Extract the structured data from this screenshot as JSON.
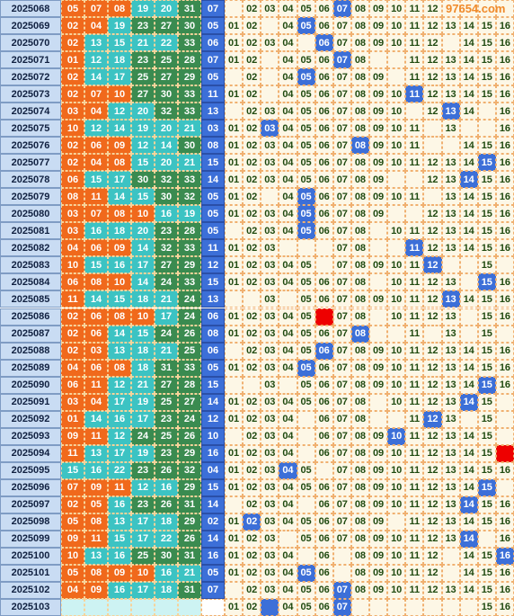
{
  "watermark": "97654.com",
  "zone_colors": [
    "#f0691c",
    "#3cc3c3",
    "#3a8b50"
  ],
  "blue_color": "#3c6fd8",
  "rows": [
    {
      "issue": "2025068",
      "red": [
        "05",
        "07",
        "08",
        "19",
        "20",
        "31"
      ],
      "blue": "07",
      "dist": [
        null,
        "02",
        "03",
        "04",
        "05",
        "06",
        {
          "text": "07",
          "fill": "#3c6fd8"
        },
        "08",
        "09",
        "10",
        "11",
        "12",
        null,
        null,
        null,
        null
      ]
    },
    {
      "issue": "2025069",
      "red": [
        "02",
        "04",
        "19",
        "23",
        "27",
        "30"
      ],
      "blue": "05",
      "dist": [
        "01",
        "02",
        null,
        "04",
        {
          "text": "05",
          "fill": "#3c6fd8"
        },
        "06",
        "07",
        "08",
        "09",
        "10",
        "11",
        "12",
        "13",
        "14",
        "15",
        "16"
      ]
    },
    {
      "issue": "2025070",
      "red": [
        "02",
        "13",
        "15",
        "21",
        "22",
        "33"
      ],
      "blue": "06",
      "dist": [
        "01",
        "02",
        "03",
        "04",
        null,
        {
          "text": "06",
          "fill": "#3c6fd8"
        },
        "07",
        "08",
        "09",
        "10",
        "11",
        "12",
        null,
        "14",
        "15",
        "16"
      ]
    },
    {
      "issue": "2025071",
      "red": [
        "01",
        "12",
        "18",
        "23",
        "25",
        "28"
      ],
      "blue": "07",
      "dist": [
        "01",
        "02",
        null,
        "04",
        "05",
        "06",
        {
          "text": "07",
          "fill": "#3c6fd8"
        },
        "08",
        null,
        null,
        "11",
        "12",
        "13",
        "14",
        "15",
        "16"
      ]
    },
    {
      "issue": "2025072",
      "red": [
        "02",
        "14",
        "17",
        "25",
        "27",
        "29"
      ],
      "blue": "05",
      "dist": [
        null,
        "02",
        null,
        "04",
        {
          "text": "05",
          "fill": "#3c6fd8"
        },
        "06",
        "07",
        "08",
        "09",
        null,
        "11",
        "12",
        "13",
        "14",
        "15",
        "16"
      ]
    },
    {
      "issue": "2025073",
      "red": [
        "02",
        "07",
        "10",
        "27",
        "30",
        "33"
      ],
      "blue": "11",
      "dist": [
        "01",
        "02",
        null,
        "04",
        "05",
        "06",
        "07",
        "08",
        "09",
        "10",
        {
          "text": "11",
          "fill": "#3c6fd8"
        },
        "12",
        "13",
        "14",
        "15",
        "16"
      ]
    },
    {
      "issue": "2025074",
      "red": [
        "03",
        "04",
        "12",
        "20",
        "32",
        "33"
      ],
      "blue": "13",
      "dist": [
        null,
        "02",
        "03",
        "04",
        "05",
        "06",
        "07",
        "08",
        "09",
        "10",
        null,
        "12",
        {
          "text": "13",
          "fill": "#3c6fd8"
        },
        "14",
        null,
        "16"
      ]
    },
    {
      "issue": "2025075",
      "red": [
        "10",
        "12",
        "14",
        "19",
        "20",
        "21"
      ],
      "blue": "03",
      "dist": [
        "01",
        "02",
        {
          "text": "03",
          "fill": "#3c6fd8"
        },
        "04",
        "05",
        "06",
        "07",
        "08",
        "09",
        "10",
        "11",
        null,
        "13",
        null,
        null,
        "16"
      ]
    },
    {
      "issue": "2025076",
      "red": [
        "02",
        "06",
        "09",
        "12",
        "14",
        "30"
      ],
      "blue": "08",
      "dist": [
        "01",
        "02",
        "03",
        "04",
        "05",
        "06",
        "07",
        {
          "text": "08",
          "fill": "#3c6fd8"
        },
        "09",
        "10",
        "11",
        null,
        null,
        "14",
        "15",
        "16"
      ]
    },
    {
      "issue": "2025077",
      "red": [
        "02",
        "04",
        "08",
        "15",
        "20",
        "21"
      ],
      "blue": "15",
      "dist": [
        "01",
        "02",
        "03",
        "04",
        "05",
        "06",
        "07",
        "08",
        "09",
        "10",
        "11",
        "12",
        "13",
        "14",
        {
          "text": "15",
          "fill": "#3c6fd8"
        },
        "16"
      ]
    },
    {
      "issue": "2025078",
      "red": [
        "06",
        "15",
        "17",
        "30",
        "32",
        "33"
      ],
      "blue": "14",
      "dist": [
        "01",
        "02",
        "03",
        "04",
        "05",
        "06",
        "07",
        "08",
        "09",
        null,
        null,
        "12",
        "13",
        {
          "text": "14",
          "fill": "#3c6fd8"
        },
        "15",
        "16"
      ]
    },
    {
      "issue": "2025079",
      "red": [
        "08",
        "11",
        "14",
        "15",
        "30",
        "32"
      ],
      "blue": "05",
      "dist": [
        "01",
        "02",
        null,
        "04",
        {
          "text": "05",
          "fill": "#3c6fd8"
        },
        "06",
        "07",
        "08",
        "09",
        "10",
        "11",
        null,
        "13",
        "14",
        "15",
        "16"
      ]
    },
    {
      "issue": "2025080",
      "red": [
        "03",
        "07",
        "08",
        "10",
        "16",
        "19"
      ],
      "blue": "05",
      "dist": [
        "01",
        "02",
        "03",
        "04",
        {
          "text": "05",
          "fill": "#3c6fd8"
        },
        "06",
        "07",
        "08",
        "09",
        null,
        null,
        "12",
        "13",
        "14",
        "15",
        "16"
      ]
    },
    {
      "issue": "2025081",
      "red": [
        "03",
        "16",
        "18",
        "20",
        "23",
        "28"
      ],
      "blue": "05",
      "dist": [
        null,
        "02",
        "03",
        "04",
        {
          "text": "05",
          "fill": "#3c6fd8"
        },
        "06",
        "07",
        "08",
        null,
        "10",
        "11",
        "12",
        "13",
        "14",
        "15",
        "16"
      ]
    },
    {
      "issue": "2025082",
      "red": [
        "04",
        "06",
        "09",
        "14",
        "32",
        "33"
      ],
      "blue": "11",
      "dist": [
        "01",
        "02",
        "03",
        null,
        null,
        null,
        "07",
        "08",
        null,
        null,
        {
          "text": "11",
          "fill": "#3c6fd8"
        },
        "12",
        "13",
        "14",
        "15",
        "16"
      ]
    },
    {
      "issue": "2025083",
      "red": [
        "10",
        "15",
        "16",
        "17",
        "27",
        "29"
      ],
      "blue": "12",
      "dist": [
        "01",
        "02",
        "03",
        "04",
        "05",
        null,
        "07",
        "08",
        "09",
        "10",
        "11",
        {
          "text": "12",
          "fill": "#3c6fd8"
        },
        null,
        null,
        "15",
        null
      ]
    },
    {
      "issue": "2025084",
      "red": [
        "06",
        "08",
        "10",
        "14",
        "24",
        "33"
      ],
      "blue": "15",
      "dist": [
        "01",
        "02",
        "03",
        "04",
        "05",
        "06",
        "07",
        "08",
        null,
        "10",
        "11",
        "12",
        "13",
        null,
        {
          "text": "15",
          "fill": "#3c6fd8"
        },
        "16"
      ]
    },
    {
      "issue": "2025085",
      "red": [
        "11",
        "14",
        "15",
        "18",
        "21",
        "24"
      ],
      "blue": "13",
      "dist": [
        null,
        null,
        "03",
        null,
        "05",
        "06",
        "07",
        "08",
        "09",
        "10",
        "11",
        "12",
        {
          "text": "13",
          "fill": "#3c6fd8"
        },
        "14",
        "15",
        "16"
      ]
    },
    {
      "issue": "2025086",
      "red": [
        "02",
        "06",
        "08",
        "10",
        "17",
        "24"
      ],
      "blue": "06",
      "dist": [
        "01",
        "02",
        "03",
        "04",
        "05",
        {
          "fill": "#ee0000"
        },
        "07",
        "08",
        null,
        "10",
        "11",
        "12",
        "13",
        null,
        "15",
        "16"
      ]
    },
    {
      "issue": "2025087",
      "red": [
        "02",
        "06",
        "14",
        "15",
        "24",
        "26"
      ],
      "blue": "08",
      "dist": [
        "01",
        "02",
        "03",
        "04",
        "05",
        "06",
        "07",
        {
          "text": "08",
          "fill": "#3c6fd8"
        },
        null,
        null,
        "11",
        null,
        "13",
        null,
        "15",
        null
      ]
    },
    {
      "issue": "2025088",
      "red": [
        "02",
        "03",
        "13",
        "18",
        "21",
        "25"
      ],
      "blue": "06",
      "dist": [
        null,
        "02",
        "03",
        "04",
        "05",
        {
          "text": "06",
          "fill": "#3c6fd8"
        },
        "07",
        "08",
        "09",
        "10",
        "11",
        "12",
        "13",
        "14",
        "15",
        "16"
      ]
    },
    {
      "issue": "2025089",
      "red": [
        "04",
        "06",
        "08",
        "18",
        "31",
        "33"
      ],
      "blue": "05",
      "dist": [
        "01",
        "02",
        "03",
        "04",
        {
          "text": "05",
          "fill": "#3c6fd8"
        },
        "06",
        "07",
        "08",
        "09",
        "10",
        "11",
        "12",
        "13",
        "14",
        "15",
        "16"
      ]
    },
    {
      "issue": "2025090",
      "red": [
        "06",
        "11",
        "12",
        "21",
        "27",
        "28"
      ],
      "blue": "15",
      "dist": [
        null,
        null,
        "03",
        null,
        "05",
        "06",
        "07",
        "08",
        "09",
        "10",
        "11",
        "12",
        "13",
        "14",
        {
          "text": "15",
          "fill": "#3c6fd8"
        },
        "16"
      ]
    },
    {
      "issue": "2025091",
      "red": [
        "03",
        "04",
        "17",
        "19",
        "25",
        "27"
      ],
      "blue": "14",
      "dist": [
        "01",
        "02",
        "03",
        "04",
        "05",
        "06",
        "07",
        "08",
        null,
        "10",
        "11",
        "12",
        "13",
        {
          "text": "14",
          "fill": "#3c6fd8"
        },
        "15",
        null
      ]
    },
    {
      "issue": "2025092",
      "red": [
        "01",
        "14",
        "16",
        "17",
        "23",
        "24"
      ],
      "blue": "12",
      "dist": [
        "01",
        "02",
        "03",
        "04",
        null,
        "06",
        "07",
        "08",
        null,
        null,
        "11",
        {
          "text": "12",
          "fill": "#3c6fd8"
        },
        "13",
        null,
        "15",
        null
      ]
    },
    {
      "issue": "2025093",
      "red": [
        "09",
        "11",
        "12",
        "24",
        "25",
        "26"
      ],
      "blue": "10",
      "dist": [
        null,
        "02",
        "03",
        "04",
        null,
        "06",
        "07",
        "08",
        "09",
        {
          "text": "10",
          "fill": "#3c6fd8"
        },
        "11",
        "12",
        "13",
        "14",
        "15",
        null
      ]
    },
    {
      "issue": "2025094",
      "red": [
        "11",
        "13",
        "17",
        "19",
        "23",
        "29"
      ],
      "blue": "16",
      "dist": [
        "01",
        "02",
        "03",
        "04",
        null,
        "06",
        "07",
        "08",
        "09",
        "10",
        "11",
        "12",
        "13",
        "14",
        "15",
        {
          "fill": "#ee0000"
        }
      ]
    },
    {
      "issue": "2025095",
      "red": [
        "15",
        "16",
        "22",
        "23",
        "26",
        "32"
      ],
      "blue": "04",
      "dist": [
        "01",
        "02",
        "03",
        {
          "text": "04",
          "fill": "#3c6fd8"
        },
        "05",
        null,
        "07",
        "08",
        "09",
        "10",
        "11",
        "12",
        "13",
        "14",
        "15",
        "16"
      ]
    },
    {
      "issue": "2025096",
      "red": [
        "07",
        "09",
        "11",
        "12",
        "16",
        "29"
      ],
      "blue": "15",
      "dist": [
        "01",
        "02",
        "03",
        "04",
        "05",
        "06",
        "07",
        "08",
        "09",
        "10",
        "11",
        "12",
        "13",
        "14",
        {
          "text": "15",
          "fill": "#3c6fd8"
        },
        null
      ]
    },
    {
      "issue": "2025097",
      "red": [
        "02",
        "05",
        "16",
        "23",
        "26",
        "31"
      ],
      "blue": "14",
      "dist": [
        null,
        "02",
        "03",
        "04",
        null,
        "06",
        "07",
        "08",
        "09",
        "10",
        "11",
        "12",
        "13",
        {
          "text": "14",
          "fill": "#3c6fd8"
        },
        "15",
        "16"
      ]
    },
    {
      "issue": "2025098",
      "red": [
        "05",
        "08",
        "13",
        "17",
        "18",
        "29"
      ],
      "blue": "02",
      "dist": [
        "01",
        {
          "text": "02",
          "fill": "#3c6fd8"
        },
        "03",
        "04",
        "05",
        "06",
        "07",
        "08",
        "09",
        null,
        "11",
        "12",
        "13",
        "14",
        "15",
        "16"
      ]
    },
    {
      "issue": "2025099",
      "red": [
        "09",
        "11",
        "15",
        "17",
        "22",
        "26"
      ],
      "blue": "14",
      "dist": [
        "01",
        "02",
        "03",
        null,
        "05",
        "06",
        "07",
        "08",
        "09",
        "10",
        "11",
        "12",
        "13",
        {
          "text": "14",
          "fill": "#3c6fd8"
        },
        null,
        "16"
      ]
    },
    {
      "issue": "2025100",
      "red": [
        "10",
        "13",
        "16",
        "25",
        "30",
        "31"
      ],
      "blue": "16",
      "dist": [
        "01",
        "02",
        "03",
        "04",
        null,
        "06",
        null,
        "08",
        "09",
        "10",
        "11",
        "12",
        null,
        "14",
        "15",
        {
          "text": "16",
          "fill": "#3c6fd8"
        }
      ]
    },
    {
      "issue": "2025101",
      "red": [
        "05",
        "08",
        "09",
        "10",
        "16",
        "21"
      ],
      "blue": "05",
      "dist": [
        "01",
        "02",
        "03",
        "04",
        {
          "text": "05",
          "fill": "#3c6fd8"
        },
        "06",
        null,
        "08",
        "09",
        "10",
        "11",
        "12",
        null,
        "14",
        "15",
        "16"
      ]
    },
    {
      "issue": "2025102",
      "red": [
        "04",
        "09",
        "16",
        "17",
        "18",
        "31"
      ],
      "blue": "07",
      "dist": [
        null,
        "02",
        "03",
        "04",
        "05",
        "06",
        {
          "text": "07",
          "fill": "#3c6fd8"
        },
        "08",
        "09",
        "10",
        "11",
        "12",
        "13",
        "14",
        "15",
        "16"
      ]
    },
    {
      "issue": "2025103",
      "red": [
        null,
        null,
        null,
        null,
        null,
        null
      ],
      "blue": null,
      "dist": [
        "01",
        "02",
        {
          "fill": "#3c6fd8"
        },
        "04",
        "05",
        "06",
        {
          "text": "07",
          "fill": "#3c6fd8"
        },
        null,
        null,
        null,
        null,
        null,
        null,
        null,
        "15",
        "16"
      ]
    }
  ]
}
